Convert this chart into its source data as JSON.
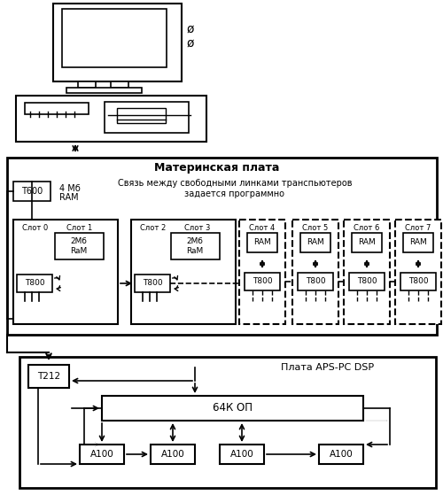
{
  "bg_color": "#ffffff",
  "fig_width": 5.0,
  "fig_height": 5.59,
  "motherboard_label": "Материнская плата",
  "ram_label": "4 Мб\nRAM",
  "note_label": "Связь между свободными линками транспьютеров\nзадается программно",
  "t600_label": "T600",
  "slot0_label": "Слот 0",
  "slot1_label": "Слот 1",
  "slot2_label": "Слот 2",
  "slot3_label": "Слот 3",
  "slot4_label": "Слот 4",
  "slot5_label": "Слот 5",
  "slot6_label": "Слот 6",
  "slot7_label": "Слот 7",
  "ram2mb_label": "2Мб\nRaM",
  "t800_label": "T800",
  "ram_slot_label": "RAM",
  "dsp_board_label": "Плата APS-PC DSP",
  "t212_label": "T212",
  "mem64k_label": "64К ОП",
  "a100_label": "A100",
  "phi_char": "ø"
}
